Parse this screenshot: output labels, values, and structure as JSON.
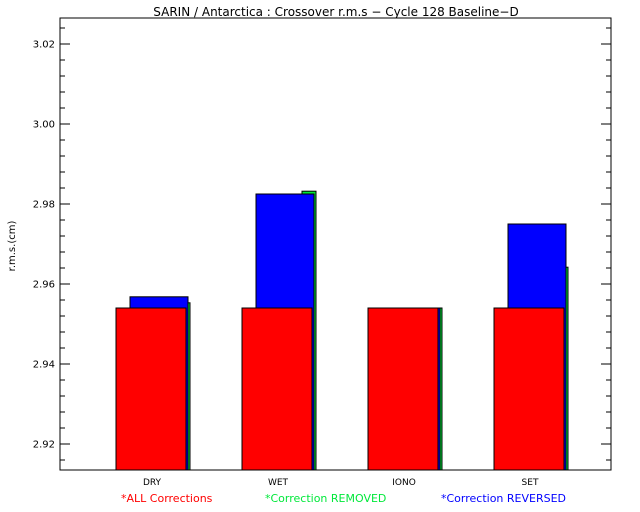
{
  "chart_data": {
    "type": "bar",
    "title": "SARIN / Antarctica : Crossover r.m.s − Cycle 128 Baseline−D",
    "xlabel": "",
    "ylabel": "r.m.s.(cm)",
    "ylim": [
      2.9135,
      3.0265
    ],
    "yticks": [
      2.92,
      2.94,
      2.96,
      2.98,
      3.0,
      3.02
    ],
    "ytick_labels": [
      "2.92",
      "2.94",
      "2.96",
      "2.98",
      "3.00",
      "3.02"
    ],
    "categories": [
      "DRY",
      "WET",
      "IONO",
      "SET"
    ],
    "series": [
      {
        "name": "ALL Corrections",
        "color": "#ff0000",
        "values": [
          2.954,
          2.954,
          2.954,
          2.954
        ]
      },
      {
        "name": "Correction REMOVED",
        "color": "#00e83a",
        "values": [
          2.9553,
          2.9832,
          2.954,
          2.9642
        ]
      },
      {
        "name": "Correction REVERSED",
        "color": "#0000ff",
        "values": [
          2.9568,
          2.9825,
          2.954,
          2.975
        ]
      }
    ],
    "legend": {
      "placement": "bottom",
      "marker": "*",
      "items": [
        "ALL Corrections",
        "Correction REMOVED",
        "Correction REVERSED"
      ]
    },
    "grid": false
  }
}
